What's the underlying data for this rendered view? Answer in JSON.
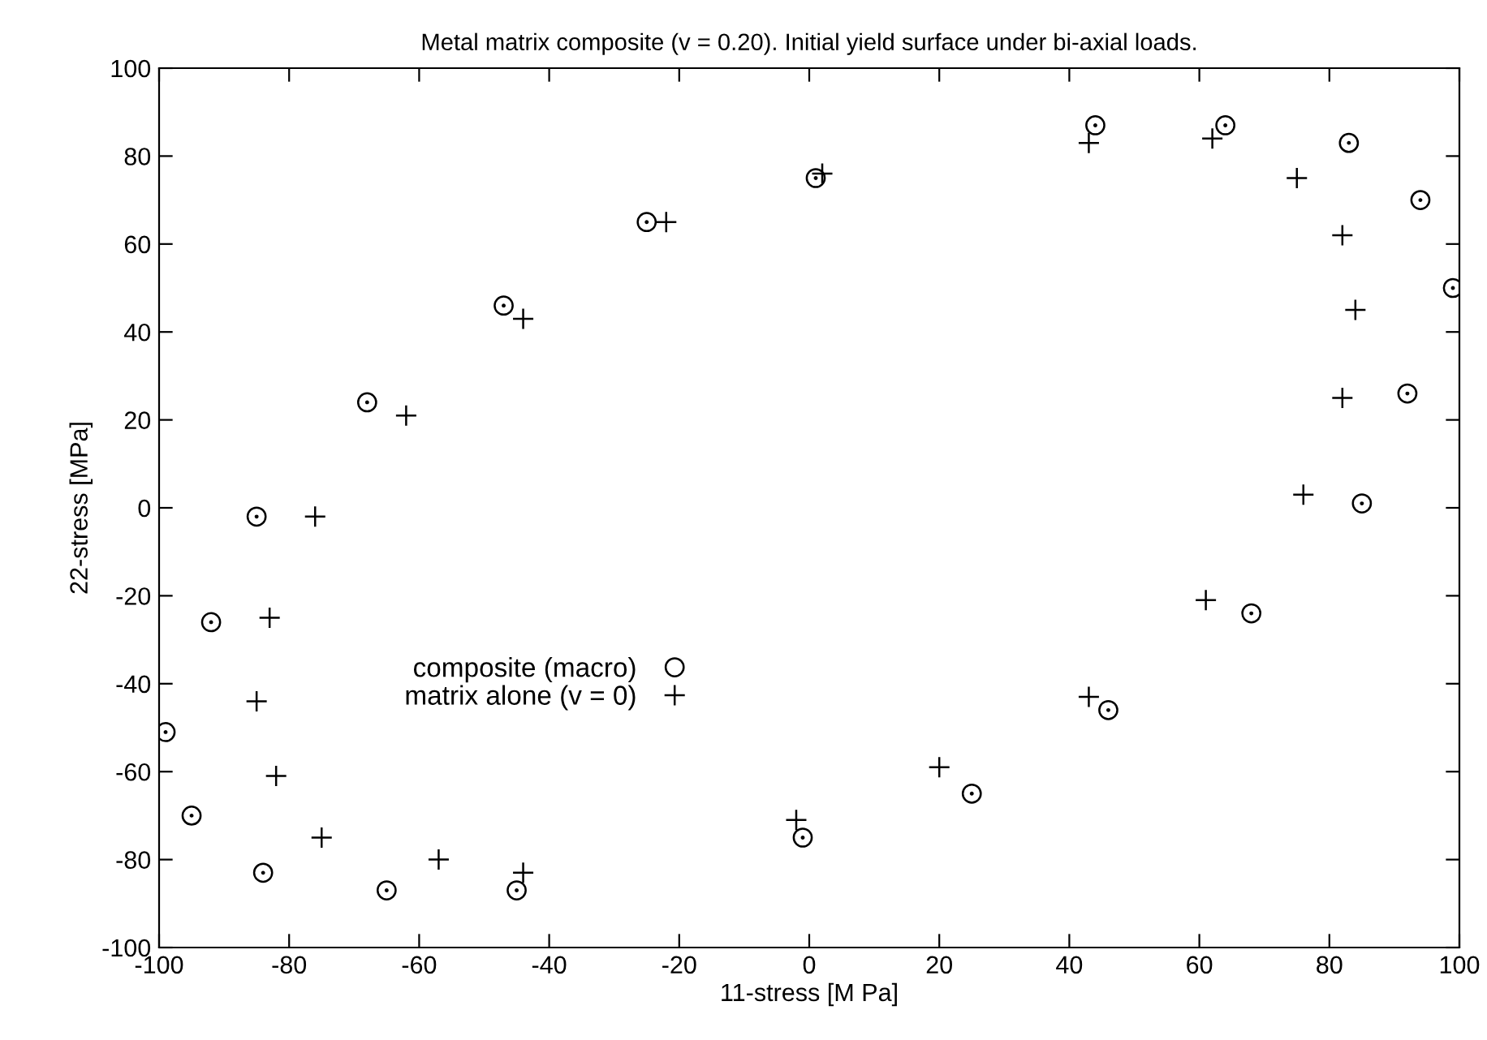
{
  "chart_data": {
    "type": "scatter",
    "title": "Metal matrix composite (v = 0.20). Initial yield surface under bi-axial loads.",
    "xlabel": "11-stress [M Pa]",
    "ylabel": "22-stress [MPa]",
    "xlim": [
      -100,
      100
    ],
    "ylim": [
      -100,
      100
    ],
    "xticks": [
      -100,
      -80,
      -60,
      -40,
      -20,
      0,
      20,
      40,
      60,
      80,
      100
    ],
    "yticks": [
      -100,
      -80,
      -60,
      -40,
      -20,
      0,
      20,
      40,
      60,
      80,
      100
    ],
    "grid": false,
    "legend": "center left",
    "series": [
      {
        "name": "composite (macro)",
        "color": "#000000",
        "marker": "circle",
        "x": [
          -99,
          -95,
          -92,
          -85,
          -84,
          -68,
          -65,
          -47,
          -45,
          -25,
          -1,
          1,
          25,
          44,
          46,
          64,
          68,
          83,
          85,
          92,
          94,
          99
        ],
        "values": [
          -51,
          -70,
          -26,
          -2,
          -83,
          24,
          -87,
          46,
          -87,
          65,
          -75,
          75,
          -65,
          87,
          -46,
          87,
          -24,
          83,
          1,
          26,
          70,
          50
        ]
      },
      {
        "name": "matrix alone (v = 0)",
        "color": "#000000",
        "marker": "cross",
        "x": [
          -85,
          -83,
          -82,
          -76,
          -75,
          -62,
          -57,
          -44,
          -44,
          -22,
          -2,
          2,
          20,
          43,
          43,
          61,
          62,
          75,
          76,
          82,
          82,
          84
        ],
        "values": [
          -44,
          -25,
          -61,
          -2,
          -75,
          21,
          -80,
          43,
          -83,
          65,
          -71,
          76,
          -59,
          -43,
          83,
          -21,
          84,
          75,
          3,
          62,
          25,
          45
        ]
      }
    ]
  }
}
